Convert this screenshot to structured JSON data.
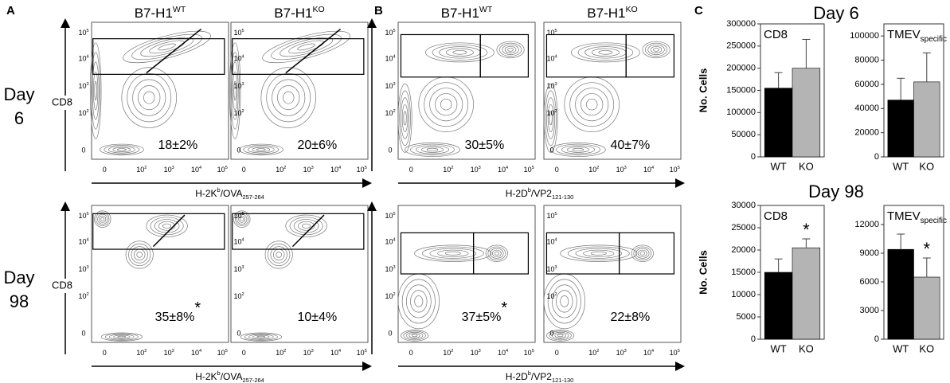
{
  "panel_labels": [
    "A",
    "B",
    "C"
  ],
  "row_labels": [
    [
      "Day",
      "6"
    ],
    [
      "Day",
      "98"
    ]
  ],
  "flow_ticks": [
    {
      "base": "0"
    },
    {
      "base": "10",
      "sup": "2"
    },
    {
      "base": "10",
      "sup": "3"
    },
    {
      "base": "10",
      "sup": "4"
    },
    {
      "base": "10",
      "sup": "5"
    }
  ],
  "flow_panels": [
    {
      "ylabel": "CD8",
      "columns": [
        {
          "base": "B7-H1",
          "sup": "WT"
        },
        {
          "base": "B7-H1",
          "sup": "KO"
        }
      ],
      "xlabel": {
        "base": "H-2K",
        "sup": "b",
        "mid": "/OVA",
        "sub": "257-264"
      },
      "rows": [
        [
          {
            "text": "18±2%"
          },
          {
            "text": "20±6%"
          }
        ],
        [
          {
            "text": "35±8%",
            "mark": "*"
          },
          {
            "text": "10±4%"
          }
        ]
      ]
    },
    {
      "columns": [
        {
          "base": "B7-H1",
          "sup": "WT"
        },
        {
          "base": "B7-H1",
          "sup": "KO"
        }
      ],
      "xlabel": {
        "base": "H-2D",
        "sup": "b",
        "mid": "/VP2",
        "sub": "121-130"
      },
      "rows": [
        [
          {
            "text": "30±5%"
          },
          {
            "text": "40±7%"
          }
        ],
        [
          {
            "text": "37±5%",
            "mark": "*"
          },
          {
            "text": "22±8%"
          }
        ]
      ]
    }
  ],
  "chart_headings": [
    "Day 6",
    "Day 98"
  ],
  "chart_data": [
    {
      "type": "bar",
      "title": "CD8",
      "ylabel": "No. Cells",
      "categories": [
        "WT",
        "KO"
      ],
      "values": [
        155000,
        200000
      ],
      "errors": [
        35000,
        65000
      ],
      "colors": [
        "#000000",
        "#b4b4b4"
      ],
      "ylim": [
        0,
        300000
      ],
      "yticks": [
        0,
        50000,
        100000,
        150000,
        200000,
        250000,
        300000
      ]
    },
    {
      "type": "bar",
      "title": "TMEV",
      "title_sub": "specific",
      "categories": [
        "WT",
        "KO"
      ],
      "values": [
        47000,
        62000
      ],
      "errors": [
        18000,
        24000
      ],
      "colors": [
        "#000000",
        "#b4b4b4"
      ],
      "ylim": [
        0,
        110000
      ],
      "yticks": [
        0,
        20000,
        40000,
        60000,
        80000,
        100000
      ]
    },
    {
      "type": "bar",
      "title": "CD8",
      "ylabel": "No. Cells",
      "categories": [
        "WT",
        "KO"
      ],
      "values": [
        15000,
        20500
      ],
      "errors": [
        3000,
        2000
      ],
      "colors": [
        "#000000",
        "#b4b4b4"
      ],
      "ylim": [
        0,
        30000
      ],
      "yticks": [
        0,
        5000,
        10000,
        15000,
        20000,
        25000,
        30000
      ],
      "annotations": [
        {
          "text": "*",
          "category": "KO"
        }
      ]
    },
    {
      "type": "bar",
      "title": "TMEV",
      "title_sub": "specific",
      "categories": [
        "WT",
        "KO"
      ],
      "values": [
        9400,
        6500
      ],
      "errors": [
        1600,
        2000
      ],
      "colors": [
        "#000000",
        "#b4b4b4"
      ],
      "ylim": [
        0,
        14000
      ],
      "yticks": [
        0,
        3000,
        6000,
        9000,
        12000
      ],
      "annotations": [
        {
          "text": "*",
          "category": "KO"
        }
      ]
    }
  ]
}
